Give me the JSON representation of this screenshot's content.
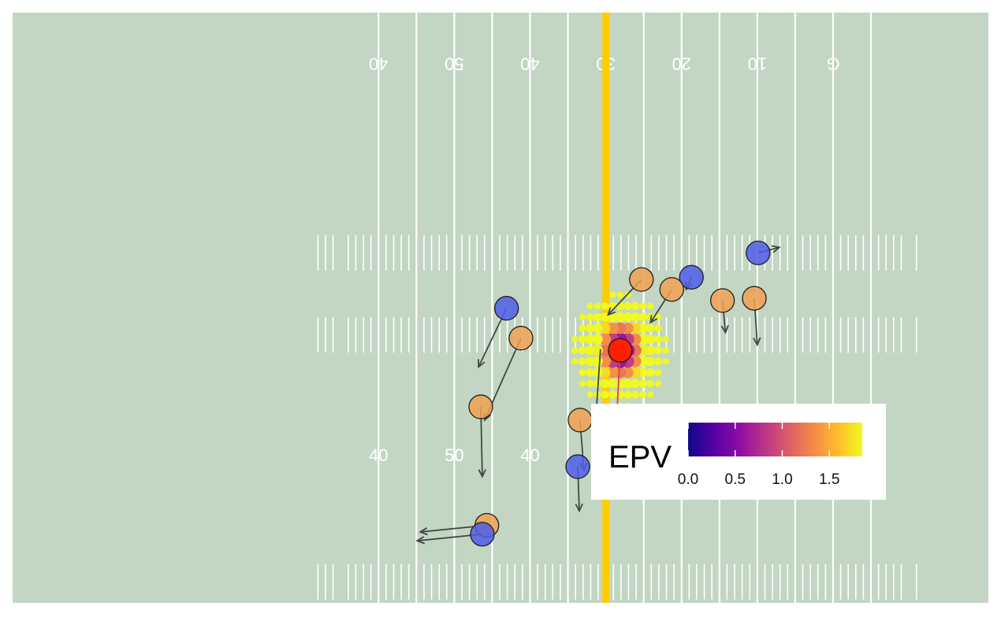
{
  "chart_data": {
    "type": "scatter",
    "title": "",
    "xlabel": "",
    "ylabel": "",
    "x_axis": "yardline_100 (10 = opponent 10, 50 = midfield, 60 = own 40)",
    "x_range": [
      108.3,
      -20.5
    ],
    "y_range": [
      53.3,
      0
    ],
    "colors": {
      "field": "#c2d6c3",
      "lines": "#ffffff",
      "line_of_scrimmage": "#ffcc00",
      "offense": "#f0a052",
      "defense": "#4f5de6",
      "ball_carrier": "#ff2000",
      "arrow": "#404a40",
      "carrier_arrow": "#e04040"
    },
    "yard_lines": [
      60,
      55,
      50,
      45,
      40,
      35,
      30,
      25,
      20,
      15,
      10,
      5,
      0,
      -5
    ],
    "yard_numbers": [
      {
        "x": 60,
        "label": "40"
      },
      {
        "x": 50,
        "label": "50"
      },
      {
        "x": 40,
        "label": "40"
      },
      {
        "x": 30,
        "label": "30"
      },
      {
        "x": 20,
        "label": "20"
      },
      {
        "x": 10,
        "label": "10"
      },
      {
        "x": 0,
        "label": "G"
      }
    ],
    "line_of_scrimmage": 30,
    "players": [
      {
        "team": "offense",
        "x": 41.2,
        "y": 23.9,
        "dx": 4.8,
        "dy": -7.4
      },
      {
        "team": "defense",
        "x": 43.1,
        "y": 26.6,
        "dx": 3.7,
        "dy": -5.3
      },
      {
        "team": "offense",
        "x": 25.3,
        "y": 29.2,
        "dx": 4.4,
        "dy": -3.2
      },
      {
        "team": "defense",
        "x": 18.7,
        "y": 29.4,
        "dx": 0.7,
        "dy": -1.1
      },
      {
        "team": "offense",
        "x": 21.3,
        "y": 28.3,
        "dx": 2.8,
        "dy": -3.0
      },
      {
        "team": "defense",
        "x": 9.9,
        "y": 31.6,
        "dx": -2.8,
        "dy": 0.5
      },
      {
        "team": "offense",
        "x": 14.6,
        "y": 27.3,
        "dx": -0.4,
        "dy": -2.9
      },
      {
        "team": "offense",
        "x": 10.4,
        "y": 27.5,
        "dx": -0.4,
        "dy": -4.2
      },
      {
        "team": "offense",
        "x": 46.5,
        "y": 17.7,
        "dx": -0.2,
        "dy": -6.3
      },
      {
        "team": "offense",
        "x": 33.4,
        "y": 16.5,
        "dx": -0.5,
        "dy": -4.5
      },
      {
        "team": "defense",
        "x": 33.7,
        "y": 12.3,
        "dx": -0.2,
        "dy": -4.0
      },
      {
        "team": "offense",
        "x": 45.7,
        "y": 7.0,
        "dx": 8.8,
        "dy": -0.6
      },
      {
        "team": "defense",
        "x": 46.3,
        "y": 6.2,
        "dx": 8.6,
        "dy": -0.6
      },
      {
        "team": "ball_carrier",
        "x": 28.1,
        "y": 22.8,
        "dx": 0.7,
        "dy": -9.3
      }
    ],
    "carrier_trail": {
      "x": 30.7,
      "y": 22.9,
      "dx": 0.6,
      "dy": -6.0
    },
    "epv_grid": {
      "center_x": 28.1,
      "center_y": 22.8,
      "spacing": 1.0,
      "radius_x": 6.3,
      "radius_y": 5.2
    },
    "legend": {
      "title": "EPV",
      "ticks": [
        0.0,
        0.5,
        1.0,
        1.5
      ],
      "tick_labels": [
        "0.0",
        "0.5",
        "1.0",
        "1.5"
      ],
      "range": [
        0.0,
        1.85
      ],
      "colormap": "plasma"
    }
  }
}
